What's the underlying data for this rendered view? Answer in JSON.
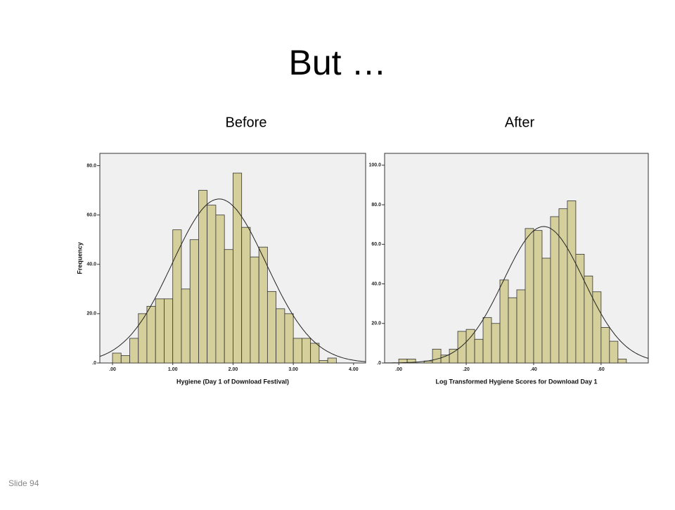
{
  "title": "But …",
  "slide_number": "Slide 94",
  "chart_data": [
    {
      "type": "histogram",
      "title": "Before",
      "x_label": "Hygiene (Day 1 of Download Festival)",
      "y_label": "Frequency",
      "bins": [
        0,
        0.143,
        0.286,
        0.429,
        0.571,
        0.714,
        0.857,
        1,
        1.143,
        1.286,
        1.429,
        1.571,
        1.714,
        1.857,
        2,
        2.143,
        2.286,
        2.429,
        2.571,
        2.714,
        2.857,
        3,
        3.143,
        3.286,
        3.429,
        3.571,
        3.714
      ],
      "values": [
        4,
        3,
        10,
        20,
        23,
        26,
        26,
        54,
        30,
        50,
        70,
        64,
        60,
        46,
        77,
        55,
        43,
        47,
        29,
        22,
        20,
        10,
        10,
        8,
        1,
        2
      ],
      "color": "#d5d09b",
      "normal_curve": {
        "mean": 1.77,
        "sd": 0.78,
        "peak": 66.5
      },
      "xlim": [
        -0.21,
        4.2
      ],
      "ylim": [
        0,
        85
      ],
      "xticks": [
        {
          "value": 0,
          "label": ".00"
        },
        {
          "value": 1,
          "label": "1.00"
        },
        {
          "value": 2,
          "label": "2.00"
        },
        {
          "value": 3,
          "label": "3.00"
        },
        {
          "value": 4,
          "label": "4.00"
        }
      ],
      "yticks": [
        {
          "value": 0,
          "label": ".0"
        },
        {
          "value": 20,
          "label": "20.0"
        },
        {
          "value": 40,
          "label": "40.0"
        },
        {
          "value": 60,
          "label": "60.0"
        },
        {
          "value": 80,
          "label": "80.0"
        }
      ]
    },
    {
      "type": "histogram",
      "title": "After",
      "x_label": "Log Transformed Hygiene Scores for Download Day 1",
      "bins": [
        0,
        0.025,
        0.05,
        0.075,
        0.1,
        0.125,
        0.15,
        0.175,
        0.2,
        0.225,
        0.25,
        0.275,
        0.3,
        0.325,
        0.35,
        0.375,
        0.4,
        0.425,
        0.45,
        0.475,
        0.5,
        0.525,
        0.55,
        0.575,
        0.6,
        0.625,
        0.65,
        0.675
      ],
      "values": [
        2,
        2,
        0,
        1,
        7,
        4,
        7,
        16,
        17,
        12,
        23,
        20,
        42,
        33,
        37,
        68,
        67,
        53,
        74,
        78,
        82,
        55,
        44,
        36,
        18,
        11,
        2
      ],
      "color": "#d5d09b",
      "normal_curve": {
        "mean": 0.43,
        "sd": 0.119,
        "peak": 69
      },
      "xlim": [
        -0.042,
        0.74
      ],
      "ylim": [
        0,
        106
      ],
      "xticks": [
        {
          "value": 0,
          "label": ".00"
        },
        {
          "value": 0.2,
          "label": ".20"
        },
        {
          "value": 0.4,
          "label": ".40"
        },
        {
          "value": 0.6,
          "label": ".60"
        }
      ],
      "yticks": [
        {
          "value": 0,
          "label": ".0"
        },
        {
          "value": 20,
          "label": "20.0"
        },
        {
          "value": 40,
          "label": "40.0"
        },
        {
          "value": 60,
          "label": "60.0"
        },
        {
          "value": 80,
          "label": "80.0"
        },
        {
          "value": 100,
          "label": "100.0"
        }
      ]
    }
  ]
}
